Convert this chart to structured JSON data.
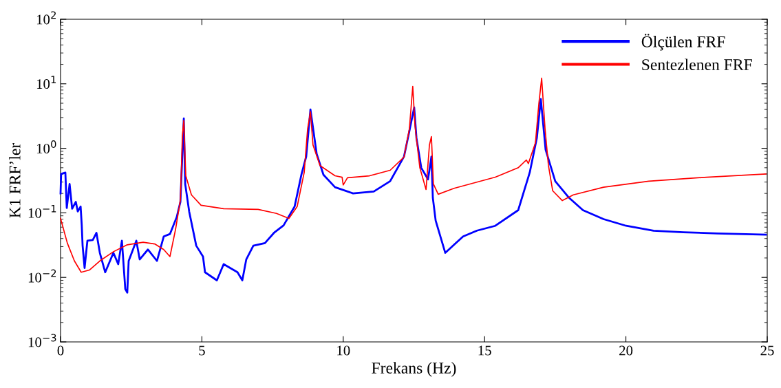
{
  "chart_data": {
    "type": "line",
    "xlabel": "Frekans (Hz)",
    "ylabel": "K1 FRF’ler",
    "log": "y",
    "grid": false,
    "legend": "top right",
    "marker": "none",
    "line_style": "solid",
    "xlim": [
      0,
      25
    ],
    "xticks": [
      0,
      5,
      10,
      15,
      20,
      25
    ],
    "ylim": [
      0.001,
      100
    ],
    "yticks": [
      {
        "value": 0.001,
        "label": "10$^{−3}$"
      },
      {
        "value": 0.01,
        "label": "10$^{−2}$"
      },
      {
        "value": 0.1,
        "label": "10$^{−1}$"
      },
      {
        "value": 1,
        "label": "10$^{0}$"
      },
      {
        "value": 10,
        "label": "10$^{1}$"
      },
      {
        "value": 100,
        "label": "10$^{2}$"
      }
    ],
    "series": [
      {
        "name": "Ölçülen FRF",
        "color": "#0000ff",
        "x": [
          0.0,
          0.02,
          0.17,
          0.22,
          0.32,
          0.41,
          0.54,
          0.61,
          0.71,
          0.75,
          0.78,
          0.85,
          0.95,
          1.14,
          1.27,
          1.39,
          1.58,
          1.87,
          2.04,
          2.17,
          2.29,
          2.36,
          2.41,
          2.68,
          2.8,
          3.09,
          3.41,
          3.65,
          3.87,
          4.11,
          4.24,
          4.36,
          4.41,
          4.55,
          4.8,
          5.04,
          5.11,
          5.53,
          5.77,
          6.26,
          6.43,
          6.57,
          6.82,
          7.23,
          7.55,
          7.89,
          8.28,
          8.52,
          8.69,
          8.84,
          9.06,
          9.3,
          9.71,
          10.35,
          11.08,
          11.66,
          12.15,
          12.34,
          12.51,
          12.59,
          12.76,
          13.0,
          13.12,
          13.17,
          13.27,
          13.61,
          13.92,
          14.24,
          14.73,
          15.38,
          16.19,
          16.6,
          16.85,
          16.99,
          17.16,
          17.5,
          17.99,
          18.48,
          19.21,
          20.01,
          20.98,
          22.03,
          23.25,
          24.95
        ],
        "values": [
          0.2,
          0.4,
          0.42,
          0.119,
          0.28,
          0.116,
          0.148,
          0.105,
          0.125,
          0.064,
          0.031,
          0.014,
          0.037,
          0.038,
          0.049,
          0.024,
          0.012,
          0.024,
          0.016,
          0.037,
          0.0066,
          0.0058,
          0.018,
          0.037,
          0.019,
          0.027,
          0.018,
          0.043,
          0.047,
          0.086,
          0.148,
          2.9,
          0.28,
          0.105,
          0.031,
          0.021,
          0.012,
          0.009,
          0.016,
          0.012,
          0.009,
          0.019,
          0.031,
          0.034,
          0.049,
          0.064,
          0.125,
          0.39,
          0.745,
          4.0,
          0.82,
          0.39,
          0.25,
          0.2,
          0.214,
          0.31,
          0.745,
          1.85,
          4.3,
          1.45,
          0.5,
          0.33,
          0.745,
          0.171,
          0.076,
          0.024,
          0.032,
          0.043,
          0.053,
          0.063,
          0.11,
          0.425,
          1.45,
          5.8,
          0.95,
          0.31,
          0.171,
          0.11,
          0.08,
          0.063,
          0.053,
          0.05,
          0.048,
          0.046
        ]
      },
      {
        "name": "Sentezlenen FRF",
        "color": "#ff0000",
        "x": [
          0.0,
          0.24,
          0.49,
          0.73,
          1.02,
          1.39,
          1.87,
          2.36,
          2.92,
          3.33,
          3.65,
          3.87,
          4.07,
          4.24,
          4.31,
          4.36,
          4.43,
          4.63,
          4.97,
          5.77,
          6.99,
          7.64,
          8.08,
          8.37,
          8.62,
          8.74,
          8.84,
          8.93,
          9.18,
          9.71,
          9.96,
          10.0,
          10.15,
          10.93,
          11.66,
          12.15,
          12.34,
          12.46,
          12.54,
          12.71,
          12.93,
          13.05,
          13.12,
          13.19,
          13.36,
          13.92,
          15.38,
          16.19,
          16.48,
          16.55,
          16.8,
          16.92,
          17.02,
          17.14,
          17.26,
          17.41,
          17.75,
          18.14,
          19.21,
          20.81,
          22.86,
          24.95
        ],
        "values": [
          0.082,
          0.034,
          0.018,
          0.012,
          0.013,
          0.018,
          0.025,
          0.032,
          0.035,
          0.033,
          0.027,
          0.021,
          0.056,
          0.16,
          1.55,
          2.7,
          0.375,
          0.19,
          0.131,
          0.116,
          0.113,
          0.098,
          0.082,
          0.125,
          0.425,
          2.0,
          3.7,
          1.13,
          0.54,
          0.375,
          0.357,
          0.27,
          0.35,
          0.375,
          0.457,
          0.73,
          2.0,
          9.1,
          2.2,
          0.5,
          0.23,
          1.13,
          1.52,
          0.28,
          0.194,
          0.24,
          0.357,
          0.5,
          0.66,
          0.58,
          1.22,
          4.9,
          12.2,
          2.0,
          0.54,
          0.22,
          0.155,
          0.19,
          0.25,
          0.31,
          0.357,
          0.4
        ]
      }
    ]
  }
}
